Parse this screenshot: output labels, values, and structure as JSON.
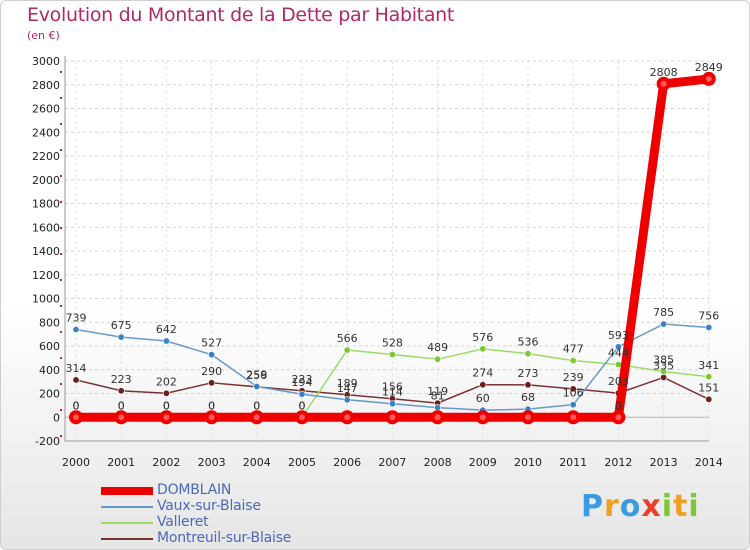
{
  "chart_data": {
    "type": "line",
    "title": "Evolution du Montant de la Dette par Habitant",
    "subtitle": "(en €)",
    "x": [
      "2000",
      "2001",
      "2002",
      "2003",
      "2004",
      "2005",
      "2006",
      "2007",
      "2008",
      "2009",
      "2010",
      "2011",
      "2012",
      "2013",
      "2014"
    ],
    "ylim": [
      -200,
      3000
    ],
    "yticks": [
      -200,
      0,
      200,
      400,
      600,
      800,
      1000,
      1200,
      1400,
      1600,
      1800,
      2000,
      2200,
      2400,
      2600,
      2800,
      3000
    ],
    "grid": true,
    "legend_position": "bottom-left",
    "series": [
      {
        "name": "DOMBLAIN",
        "color": "#ee0000",
        "marker": "#ee0000",
        "values": [
          0,
          0,
          0,
          0,
          0,
          0,
          0,
          0,
          0,
          0,
          0,
          0,
          0,
          2808,
          2849
        ],
        "labels": [
          "0",
          "0",
          "0",
          "0",
          "0",
          "0",
          "",
          "",
          "",
          "",
          "",
          "",
          "0",
          "2808",
          "2849"
        ]
      },
      {
        "name": "Vaux-sur-Blaise",
        "color": "#6699cc",
        "marker": "#3a82c8",
        "values": [
          739,
          675,
          642,
          527,
          259,
          194,
          147,
          114,
          81,
          60,
          68,
          106,
          593,
          785,
          756
        ],
        "labels": [
          "739",
          "675",
          "642",
          "527",
          "259",
          "194",
          "147",
          "114",
          "81",
          "60",
          "68",
          "106",
          "593",
          "785",
          "756"
        ]
      },
      {
        "name": "Valleret",
        "color": "#99dd66",
        "marker": "#7cc832",
        "values": [
          0,
          0,
          0,
          0,
          0,
          0,
          566,
          528,
          489,
          576,
          536,
          477,
          444,
          385,
          341
        ],
        "labels": [
          "0",
          "0",
          "0",
          "0",
          "0",
          "0",
          "566",
          "528",
          "489",
          "576",
          "536",
          "477",
          "444",
          "385",
          "341"
        ]
      },
      {
        "name": "Montreuil-sur-Blaise",
        "color": "#7a3333",
        "marker": "#6a1f1f",
        "values": [
          314,
          223,
          202,
          290,
          256,
          223,
          189,
          156,
          119,
          274,
          273,
          239,
          203,
          335,
          151
        ],
        "labels": [
          "314",
          "223",
          "202",
          "290",
          "256",
          "223",
          "189",
          "156",
          "119",
          "274",
          "273",
          "239",
          "203",
          "335",
          "151"
        ]
      }
    ]
  },
  "legend": {
    "items": [
      {
        "label": "DOMBLAIN",
        "color": "#ee0000"
      },
      {
        "label": "Vaux-sur-Blaise",
        "color": "#6699cc"
      },
      {
        "label": "Valleret",
        "color": "#99dd66"
      },
      {
        "label": "Montreuil-sur-Blaise",
        "color": "#7a3333"
      }
    ]
  },
  "brand": {
    "letters": [
      {
        "ch": "P",
        "color": "#3a9be0"
      },
      {
        "ch": "r",
        "color": "#f0a020"
      },
      {
        "ch": "o",
        "color": "#3a9be0"
      },
      {
        "ch": "x",
        "color": "#e8402a"
      },
      {
        "ch": "i",
        "color": "#7cc832"
      },
      {
        "ch": "t",
        "color": "#f0a020"
      },
      {
        "ch": "i",
        "color": "#7cc832"
      }
    ]
  }
}
